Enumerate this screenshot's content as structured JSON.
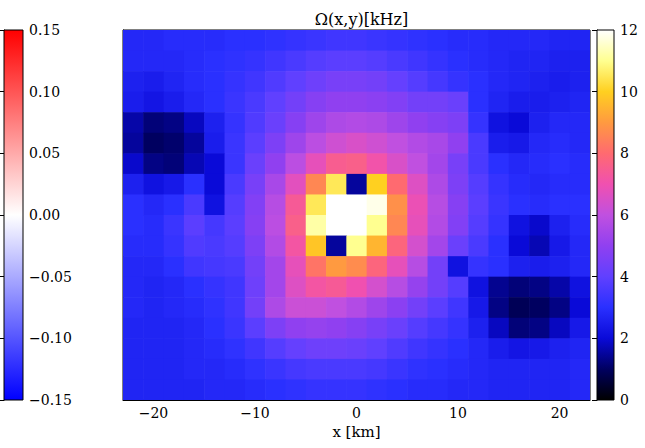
{
  "chart_data": {
    "type": "heatmap",
    "title": "Ω(x,y)[kHz]",
    "x_label": "x [km]",
    "xlim": [
      -23,
      23
    ],
    "xticks": [
      {
        "value": -20,
        "label": "−20"
      },
      {
        "value": -10,
        "label": "−10"
      },
      0,
      10,
      20
    ],
    "ylim": [
      -18,
      18
    ],
    "yticks": [],
    "tick_labels": "x",
    "x": [
      -22,
      -20,
      -18,
      -16,
      -14,
      -12,
      -10,
      -8,
      -6,
      -4,
      -2,
      0,
      2,
      4,
      6,
      8,
      10,
      12,
      14,
      16,
      18,
      20,
      22
    ],
    "y": [
      17,
      15,
      13,
      11,
      9,
      7,
      5,
      3,
      1,
      -1,
      -3,
      -5,
      -7,
      -9,
      -11,
      -13,
      -15,
      -17
    ],
    "cells": [
      [
        2.8,
        2.8,
        2.9,
        2.9,
        2.9,
        3.0,
        3.0,
        3.1,
        3.2,
        3.3,
        3.4,
        3.4,
        3.3,
        3.2,
        3.1,
        3.0,
        2.9,
        2.9,
        2.8,
        2.8,
        2.8,
        2.7,
        2.7
      ],
      [
        2.8,
        2.8,
        2.8,
        2.9,
        3.0,
        3.1,
        3.2,
        3.4,
        3.6,
        3.8,
        3.9,
        3.9,
        3.8,
        3.6,
        3.4,
        3.2,
        3.0,
        2.9,
        2.8,
        2.7,
        2.7,
        2.6,
        2.6
      ],
      [
        2.6,
        2.5,
        2.7,
        2.9,
        3.0,
        3.2,
        3.4,
        3.7,
        4.0,
        4.3,
        4.5,
        4.5,
        4.4,
        4.1,
        3.8,
        3.5,
        3.2,
        3.0,
        2.8,
        2.7,
        2.6,
        2.5,
        2.6
      ],
      [
        2.5,
        2.3,
        2.5,
        2.8,
        3.0,
        3.3,
        3.6,
        4.0,
        4.4,
        4.8,
        5.0,
        5.0,
        4.9,
        4.7,
        4.4,
        4.4,
        4.2,
        3.0,
        2.7,
        2.5,
        2.5,
        2.6,
        2.7
      ],
      [
        1.6,
        1.2,
        1.3,
        1.8,
        2.6,
        3.2,
        3.7,
        4.2,
        4.8,
        5.3,
        5.6,
        5.7,
        5.6,
        5.3,
        5.0,
        4.8,
        4.6,
        3.2,
        2.2,
        2.0,
        2.6,
        2.8,
        2.8
      ],
      [
        1.5,
        1.0,
        1.1,
        1.5,
        2.5,
        3.3,
        3.9,
        4.6,
        5.3,
        5.9,
        6.3,
        6.5,
        6.3,
        6.0,
        5.7,
        5.5,
        5.0,
        3.6,
        2.5,
        2.4,
        2.8,
        2.9,
        2.8
      ],
      [
        1.9,
        1.3,
        1.2,
        1.7,
        2.0,
        3.3,
        4.2,
        5.0,
        5.9,
        6.8,
        7.5,
        7.6,
        7.1,
        6.5,
        6.0,
        5.4,
        4.5,
        3.6,
        3.0,
        2.8,
        2.9,
        3.0,
        2.9
      ],
      [
        2.6,
        2.2,
        2.4,
        3.0,
        2.0,
        3.6,
        4.5,
        5.5,
        6.7,
        8.6,
        10.5,
        1.5,
        10.0,
        8.0,
        6.6,
        5.6,
        4.6,
        3.8,
        3.2,
        2.9,
        2.8,
        2.9,
        2.9
      ],
      [
        3.0,
        2.8,
        3.0,
        3.6,
        2.2,
        3.8,
        4.7,
        5.8,
        7.4,
        10.5,
        12.0,
        12.0,
        11.8,
        8.8,
        6.9,
        5.8,
        4.8,
        3.9,
        3.3,
        3.0,
        2.9,
        3.0,
        3.0
      ],
      [
        3.0,
        2.9,
        3.3,
        3.9,
        3.5,
        3.9,
        4.8,
        5.9,
        7.6,
        11.2,
        12.0,
        12.0,
        11.0,
        8.6,
        6.8,
        5.7,
        4.7,
        3.8,
        3.2,
        2.2,
        1.9,
        2.6,
        2.9
      ],
      [
        2.9,
        2.9,
        3.2,
        3.7,
        3.6,
        3.8,
        4.6,
        5.7,
        7.2,
        9.8,
        1.5,
        11.0,
        9.5,
        7.8,
        6.4,
        5.4,
        4.2,
        3.6,
        3.0,
        2.0,
        1.7,
        2.4,
        2.8
      ],
      [
        2.8,
        2.8,
        3.0,
        3.4,
        3.5,
        3.6,
        4.4,
        5.4,
        6.8,
        8.2,
        9.0,
        8.7,
        7.8,
        6.8,
        5.8,
        4.4,
        2.2,
        3.2,
        3.0,
        2.6,
        2.5,
        2.6,
        2.8
      ],
      [
        2.8,
        2.7,
        2.8,
        3.0,
        3.2,
        3.4,
        4.3,
        5.4,
        6.6,
        7.2,
        7.4,
        7.0,
        6.4,
        5.8,
        5.1,
        4.4,
        3.8,
        2.2,
        1.4,
        1.2,
        1.3,
        1.6,
        2.2
      ],
      [
        2.8,
        2.7,
        2.8,
        2.9,
        3.1,
        3.4,
        4.4,
        5.6,
        6.2,
        6.2,
        6.0,
        5.7,
        5.3,
        4.9,
        4.4,
        3.9,
        3.4,
        2.4,
        1.3,
        0.9,
        1.0,
        1.3,
        2.0
      ],
      [
        2.7,
        2.7,
        2.7,
        2.8,
        3.0,
        3.3,
        3.9,
        4.6,
        5.0,
        5.1,
        5.0,
        4.8,
        4.5,
        4.2,
        3.8,
        3.5,
        3.2,
        2.6,
        1.8,
        1.2,
        1.3,
        1.8,
        2.4
      ],
      [
        2.7,
        2.7,
        2.7,
        2.8,
        2.9,
        3.1,
        3.4,
        3.8,
        4.1,
        4.3,
        4.3,
        4.2,
        4.0,
        3.7,
        3.4,
        3.2,
        3.0,
        2.8,
        2.5,
        2.3,
        2.4,
        2.6,
        2.7
      ],
      [
        2.7,
        2.7,
        2.7,
        2.8,
        2.8,
        2.9,
        3.1,
        3.3,
        3.5,
        3.6,
        3.6,
        3.6,
        3.5,
        3.3,
        3.1,
        3.0,
        2.9,
        2.8,
        2.7,
        2.7,
        2.7,
        2.7,
        2.8
      ],
      [
        2.7,
        2.7,
        2.7,
        2.7,
        2.8,
        2.8,
        2.9,
        3.0,
        3.1,
        3.2,
        3.2,
        3.2,
        3.1,
        3.0,
        2.9,
        2.9,
        2.8,
        2.8,
        2.7,
        2.7,
        2.7,
        2.7,
        2.8
      ]
    ],
    "colorbar": {
      "range": [
        0,
        12
      ],
      "ticks": [
        0,
        2,
        4,
        6,
        8,
        10,
        12
      ]
    },
    "colorbar_2": {
      "range": [
        -0.15,
        0.15
      ],
      "ticks": [
        {
          "value": -0.15,
          "label": "−0.15"
        },
        {
          "value": -0.1,
          "label": "−0.10"
        },
        {
          "value": -0.05,
          "label": "−0.05"
        },
        {
          "value": 0,
          "label": "0.00"
        },
        0.05,
        {
          "value": 0.1,
          "label": "0.10"
        },
        0.15
      ]
    }
  }
}
